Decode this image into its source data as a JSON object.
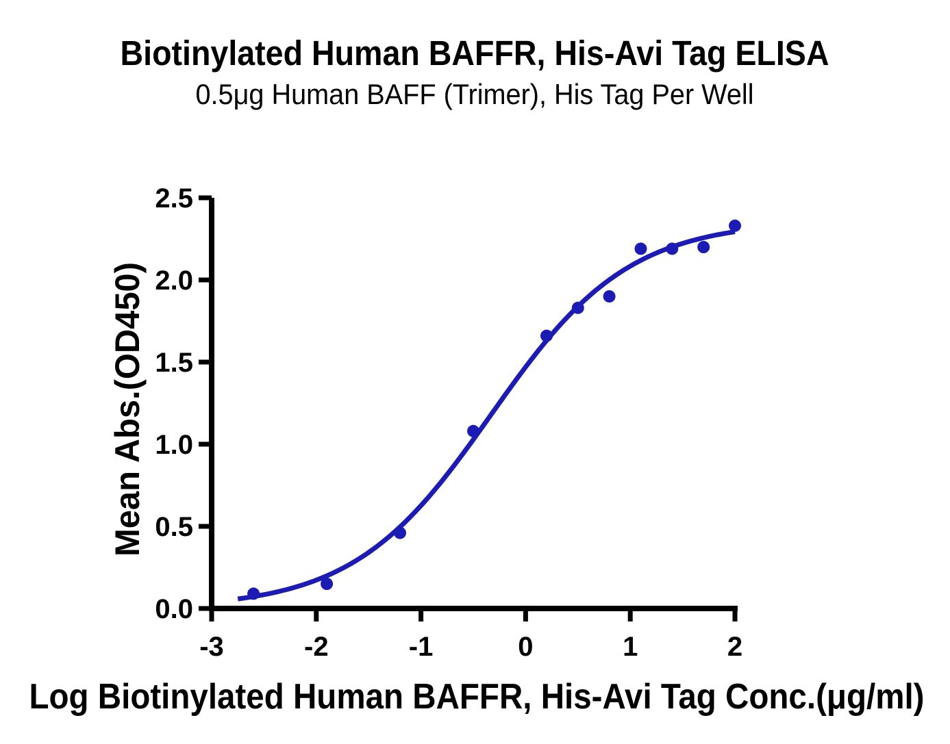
{
  "chart_data": {
    "type": "scatter",
    "title": "Biotinylated Human BAFFR, His-Avi Tag ELISA",
    "subtitle": "0.5μg Human BAFF (Trimer), His Tag Per Well",
    "xlabel": "Log Biotinylated Human BAFFR, His-Avi Tag Conc.(μg/ml)",
    "ylabel": "Mean Abs.(OD450)",
    "xlim": [
      -3,
      2
    ],
    "ylim": [
      0,
      2.5
    ],
    "x_ticks": [
      -3,
      -2,
      -1,
      0,
      1,
      2
    ],
    "x_tick_labels": [
      "-3",
      "-2",
      "-1",
      "0",
      "1",
      "2"
    ],
    "y_ticks": [
      0,
      0.5,
      1,
      1.5,
      2,
      2.5
    ],
    "y_tick_labels": [
      "0.0",
      "0.5",
      "1.0",
      "1.5",
      "2.0",
      "2.5"
    ],
    "grid": false,
    "legend_position": "none",
    "series": [
      {
        "name": "Biotinylated Human BAFFR, His-Avi Tag",
        "marker": "circle",
        "color": "#1C1CB4",
        "x": [
          -2.6,
          -1.9,
          -1.2,
          -0.5,
          0.2,
          0.5,
          0.8,
          1.1,
          1.4,
          1.7,
          2.0
        ],
        "y": [
          0.09,
          0.15,
          0.46,
          1.08,
          1.66,
          1.83,
          1.9,
          2.19,
          2.19,
          2.2,
          2.33
        ]
      }
    ],
    "fit_curve": {
      "model": "4PL-sigmoid",
      "bottom": 0,
      "top": 2.36,
      "logEC50": -0.33,
      "hillslope": 0.66,
      "x_range": [
        -2.75,
        2.0
      ],
      "color": "#1C1CB4"
    }
  },
  "colors": {
    "accent": "#1C1CB4",
    "axis": "#000000",
    "text": "#000000",
    "background": "#ffffff"
  }
}
